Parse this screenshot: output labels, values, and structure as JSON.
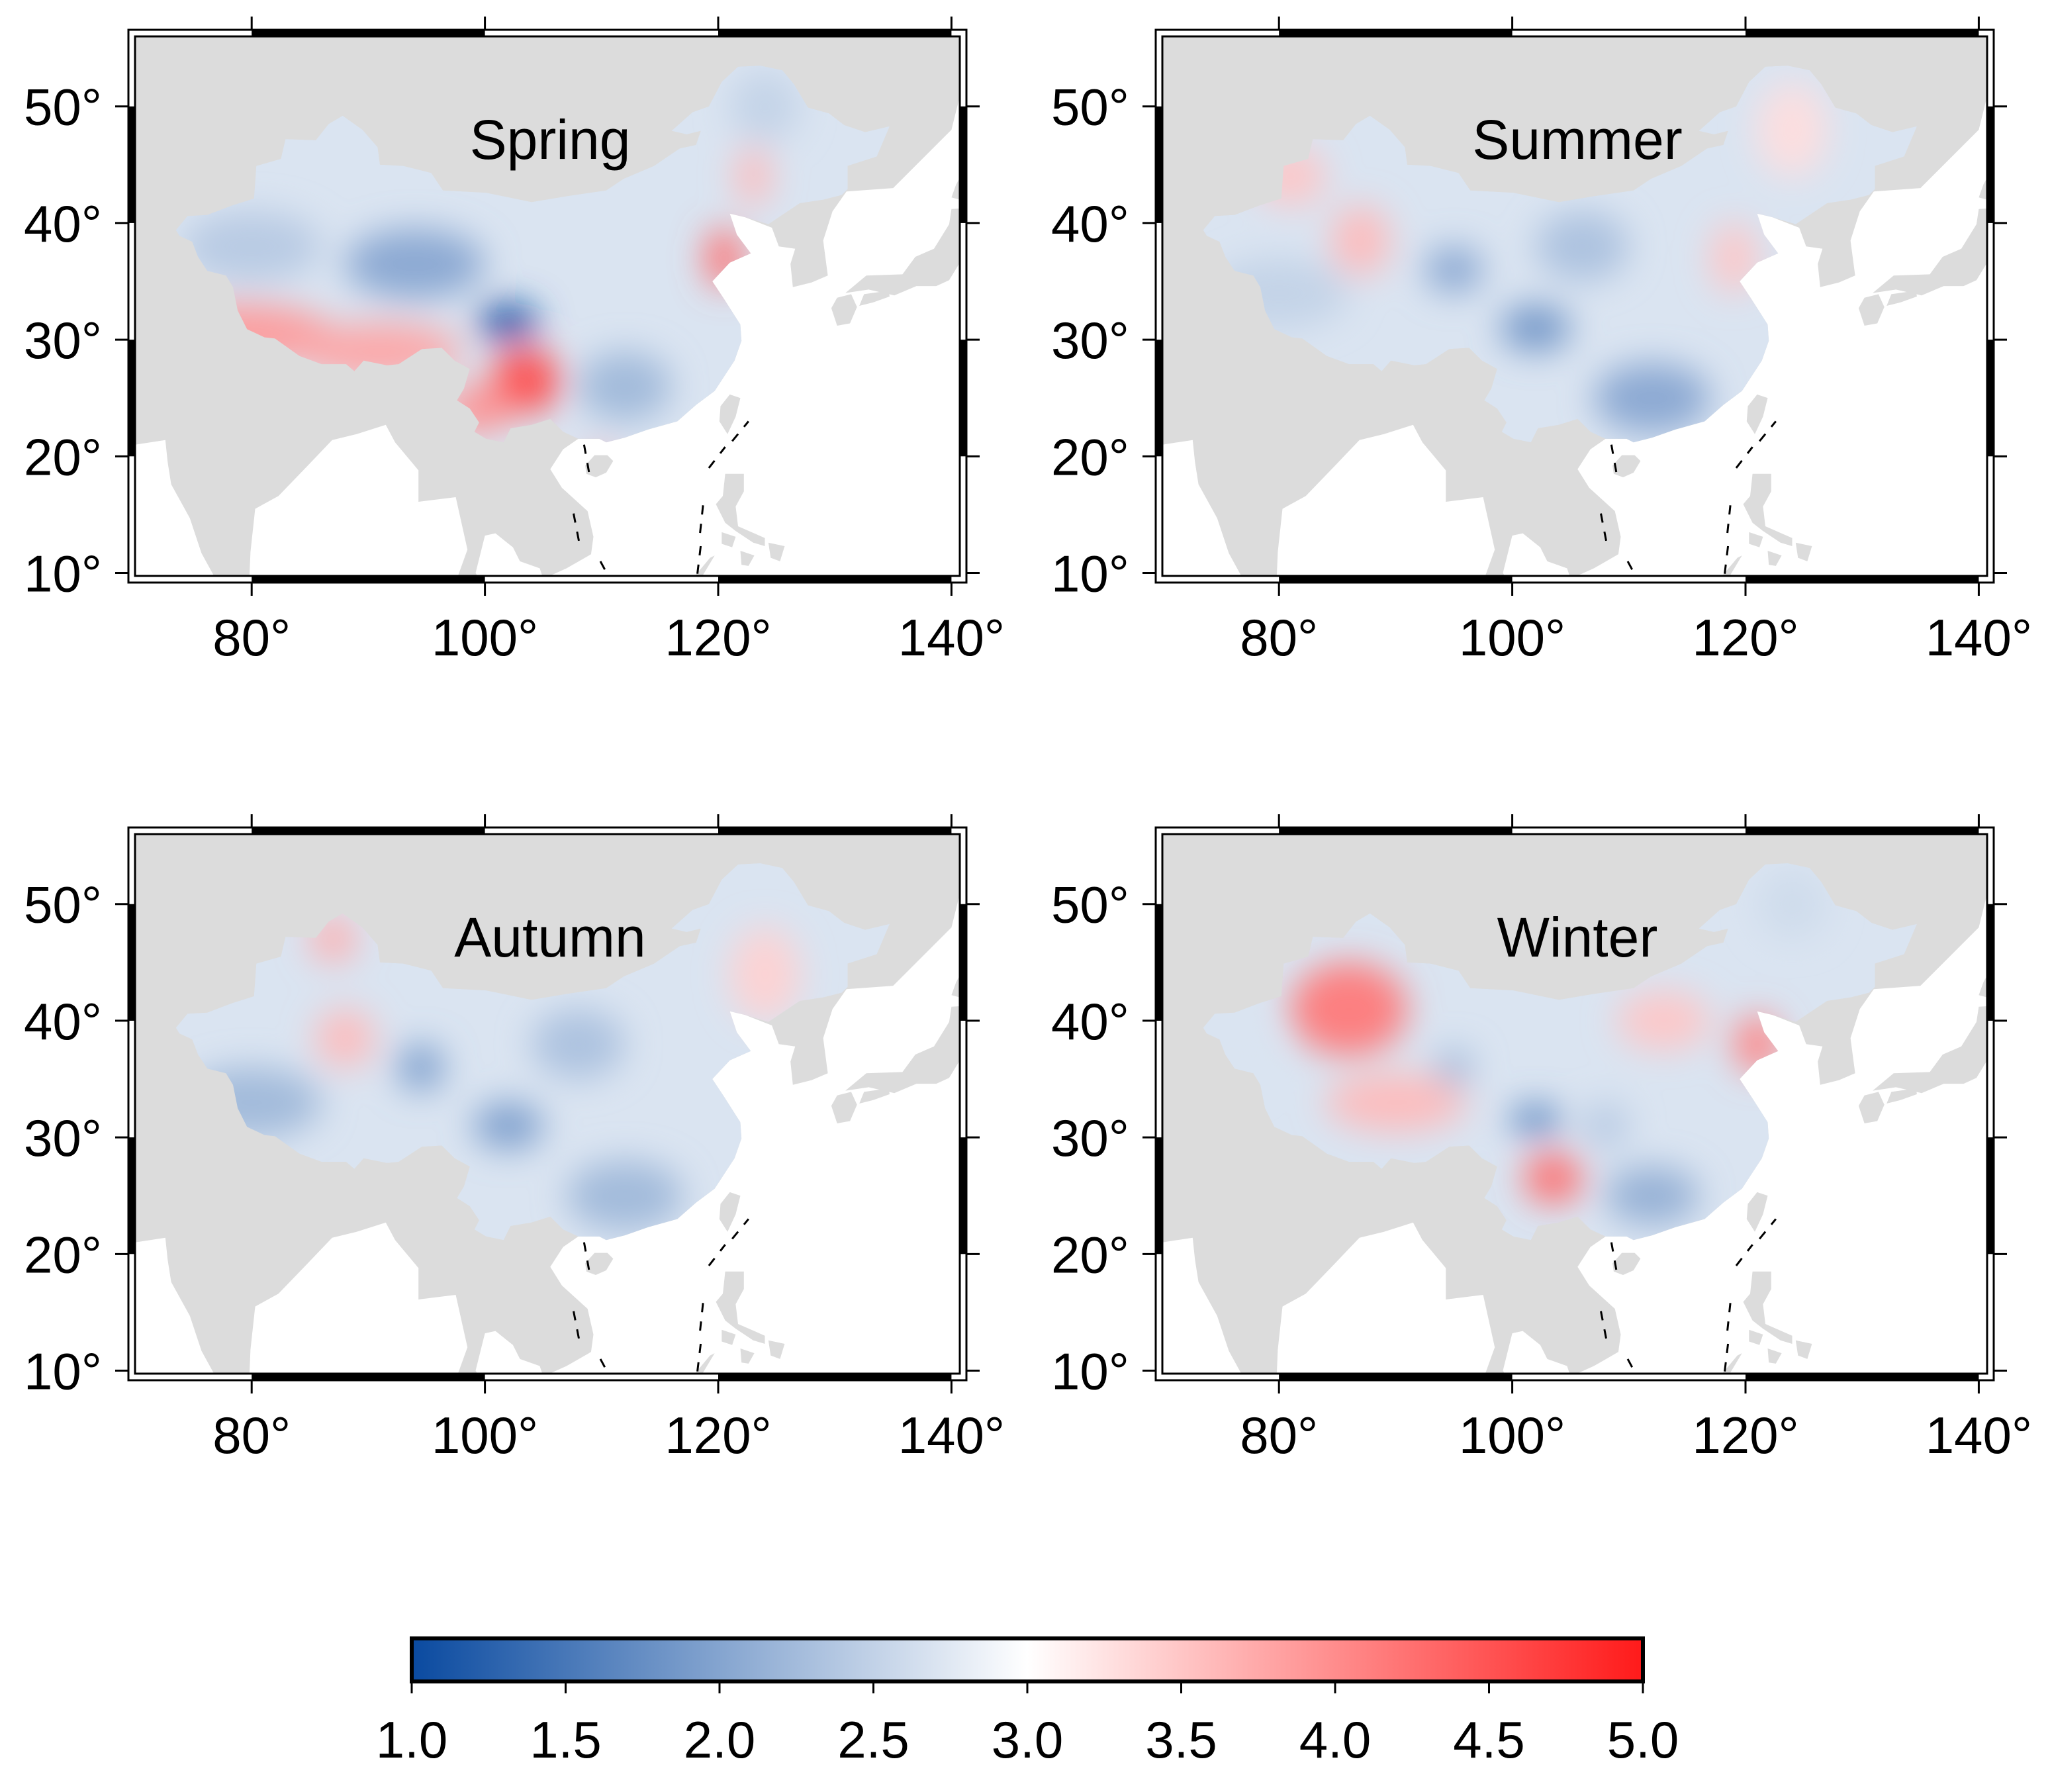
{
  "figure": {
    "panels": [
      {
        "title": "Spring",
        "hotspots": [
          {
            "lon": 79,
            "lat": 30.5,
            "v": 3.9,
            "sx": 8,
            "sy": 2.6
          },
          {
            "lon": 91,
            "lat": 29.0,
            "v": 3.8,
            "sx": 7,
            "sy": 2.4
          },
          {
            "lon": 103.5,
            "lat": 26.5,
            "v": 4.6,
            "sx": 3,
            "sy": 2.8
          },
          {
            "lon": 99.5,
            "lat": 24.0,
            "v": 4.0,
            "sx": 3,
            "sy": 2
          },
          {
            "lon": 102,
            "lat": 31.5,
            "v": 1.0,
            "sx": 2.6,
            "sy": 1.6
          },
          {
            "lon": 94,
            "lat": 36.5,
            "v": 2.0,
            "sx": 6,
            "sy": 3
          },
          {
            "lon": 80,
            "lat": 38,
            "v": 2.4,
            "sx": 6,
            "sy": 3
          },
          {
            "lon": 112,
            "lat": 26,
            "v": 2.2,
            "sx": 4,
            "sy": 3
          },
          {
            "lon": 120.5,
            "lat": 37,
            "v": 4.3,
            "sx": 1.6,
            "sy": 2.6
          },
          {
            "lon": 123,
            "lat": 44,
            "v": 3.6,
            "sx": 1.5,
            "sy": 2.5
          },
          {
            "lon": 110,
            "lat": 19.6,
            "v": 3.9,
            "sx": 1,
            "sy": 1
          },
          {
            "lon": 124,
            "lat": 50,
            "v": 2.5,
            "sx": 3,
            "sy": 3
          }
        ]
      },
      {
        "title": "Summer",
        "hotspots": [
          {
            "lon": 87,
            "lat": 38.5,
            "v": 3.6,
            "sx": 2.5,
            "sy": 3
          },
          {
            "lon": 81,
            "lat": 44,
            "v": 3.5,
            "sx": 3,
            "sy": 2.5
          },
          {
            "lon": 102,
            "lat": 31,
            "v": 1.8,
            "sx": 3,
            "sy": 2
          },
          {
            "lon": 95,
            "lat": 36,
            "v": 2.0,
            "sx": 2.5,
            "sy": 2
          },
          {
            "lon": 112,
            "lat": 25,
            "v": 2.0,
            "sx": 5,
            "sy": 3
          },
          {
            "lon": 80,
            "lat": 34,
            "v": 2.5,
            "sx": 6,
            "sy": 3
          },
          {
            "lon": 124,
            "lat": 48,
            "v": 3.3,
            "sx": 3,
            "sy": 4
          },
          {
            "lon": 119,
            "lat": 37,
            "v": 3.5,
            "sx": 2,
            "sy": 3
          },
          {
            "lon": 106,
            "lat": 38,
            "v": 2.3,
            "sx": 4,
            "sy": 3
          }
        ]
      },
      {
        "title": "Autumn",
        "hotspots": [
          {
            "lon": 88,
            "lat": 38.5,
            "v": 3.6,
            "sx": 2.5,
            "sy": 2.5
          },
          {
            "lon": 87,
            "lat": 47,
            "v": 3.7,
            "sx": 2,
            "sy": 2
          },
          {
            "lon": 94.5,
            "lat": 36,
            "v": 1.9,
            "sx": 2,
            "sy": 2
          },
          {
            "lon": 102,
            "lat": 31,
            "v": 1.9,
            "sx": 3,
            "sy": 2
          },
          {
            "lon": 80,
            "lat": 33,
            "v": 2.2,
            "sx": 6,
            "sy": 3
          },
          {
            "lon": 112,
            "lat": 25,
            "v": 2.2,
            "sx": 5,
            "sy": 3
          },
          {
            "lon": 124,
            "lat": 44,
            "v": 3.4,
            "sx": 3,
            "sy": 4
          },
          {
            "lon": 108,
            "lat": 38,
            "v": 2.3,
            "sx": 4,
            "sy": 3
          }
        ]
      },
      {
        "title": "Winter",
        "hotspots": [
          {
            "lon": 86,
            "lat": 41,
            "v": 4.2,
            "sx": 5,
            "sy": 4
          },
          {
            "lon": 90,
            "lat": 33,
            "v": 3.6,
            "sx": 6,
            "sy": 2.5
          },
          {
            "lon": 103.5,
            "lat": 26.5,
            "v": 4.3,
            "sx": 2.5,
            "sy": 2.2
          },
          {
            "lon": 102,
            "lat": 31.5,
            "v": 1.6,
            "sx": 2.2,
            "sy": 1.3
          },
          {
            "lon": 95,
            "lat": 36,
            "v": 2.2,
            "sx": 1.6,
            "sy": 1.6
          },
          {
            "lon": 112,
            "lat": 25,
            "v": 2.1,
            "sx": 4,
            "sy": 2.5
          },
          {
            "lon": 108,
            "lat": 31,
            "v": 2.4,
            "sx": 2,
            "sy": 2
          },
          {
            "lon": 121,
            "lat": 38,
            "v": 4.1,
            "sx": 2,
            "sy": 2.5
          },
          {
            "lon": 113,
            "lat": 40,
            "v": 3.5,
            "sx": 4,
            "sy": 2.5
          },
          {
            "lon": 124,
            "lat": 50,
            "v": 2.6,
            "sx": 3,
            "sy": 3
          },
          {
            "lon": 76,
            "lat": 37,
            "v": 2.7,
            "sx": 3,
            "sy": 3
          }
        ]
      }
    ],
    "map_extent": {
      "lon": [
        70,
        141
      ],
      "lat": [
        9.5,
        56
      ]
    },
    "lon_ticks": [
      80,
      100,
      120,
      140
    ],
    "lat_ticks": [
      10,
      20,
      30,
      40,
      50
    ],
    "lon_tick_labels": [
      "80°",
      "100°",
      "120°",
      "140°"
    ],
    "lat_tick_labels": [
      "10°",
      "20°",
      "30°",
      "40°",
      "50°"
    ],
    "colorbar": {
      "min": 1.0,
      "max": 5.0,
      "labels": [
        "1.0",
        "1.5",
        "2.0",
        "2.5",
        "3.0",
        "3.5",
        "4.0",
        "4.5",
        "5.0"
      ],
      "color_low": "#0a4aa0",
      "color_mid": "#ffffff",
      "color_high": "#ff1a1a"
    },
    "land_color": "#dcdcdc",
    "ocean_color": "#ffffff"
  }
}
